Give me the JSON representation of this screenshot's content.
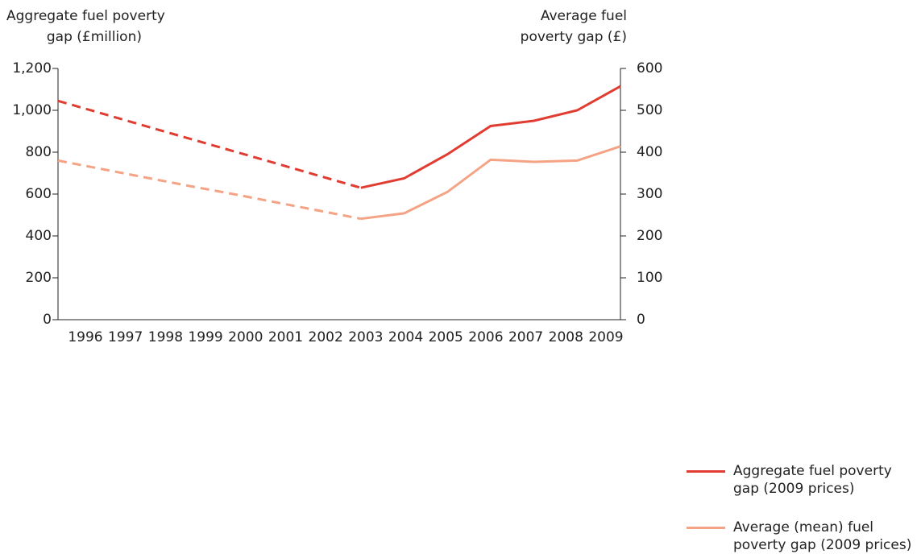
{
  "chart_data": {
    "type": "line",
    "ylabel": [
      "Aggregate fuel poverty",
      "gap (£million)"
    ],
    "y2label": [
      "Average fuel",
      "poverty gap (£)"
    ],
    "categories": [
      "1996",
      "1997",
      "1998",
      "1999",
      "2000",
      "2001",
      "2002",
      "2003",
      "2004",
      "2005",
      "2006",
      "2007",
      "2008",
      "2009"
    ],
    "series": [
      {
        "name": "Aggregate fuel poverty gap (2009 prices)",
        "color": "#e03c31",
        "axis": "y",
        "values": [
          1045,
          986,
          926,
          867,
          808,
          749,
          689,
          630,
          675,
          790,
          925,
          950,
          1000,
          1115
        ],
        "dashed_until": 7
      },
      {
        "name": "Average (mean) fuel poverty gap (2009 prices)",
        "color": "#f4a384",
        "axis": "y2",
        "values": [
          380,
          360,
          340,
          320,
          301,
          281,
          261,
          241,
          254,
          305,
          382,
          377,
          380,
          414
        ],
        "dashed_until": 7
      }
    ],
    "ylim": [
      0,
      1200
    ],
    "yticks": [
      0,
      200,
      400,
      600,
      800,
      {
        "value": 1000,
        "label": "1,000"
      },
      {
        "value": 1200,
        "label": "1,200"
      }
    ],
    "y2lim": [
      0,
      600
    ],
    "y2ticks": [
      0,
      100,
      200,
      300,
      400,
      500,
      600
    ],
    "legend": "right"
  }
}
